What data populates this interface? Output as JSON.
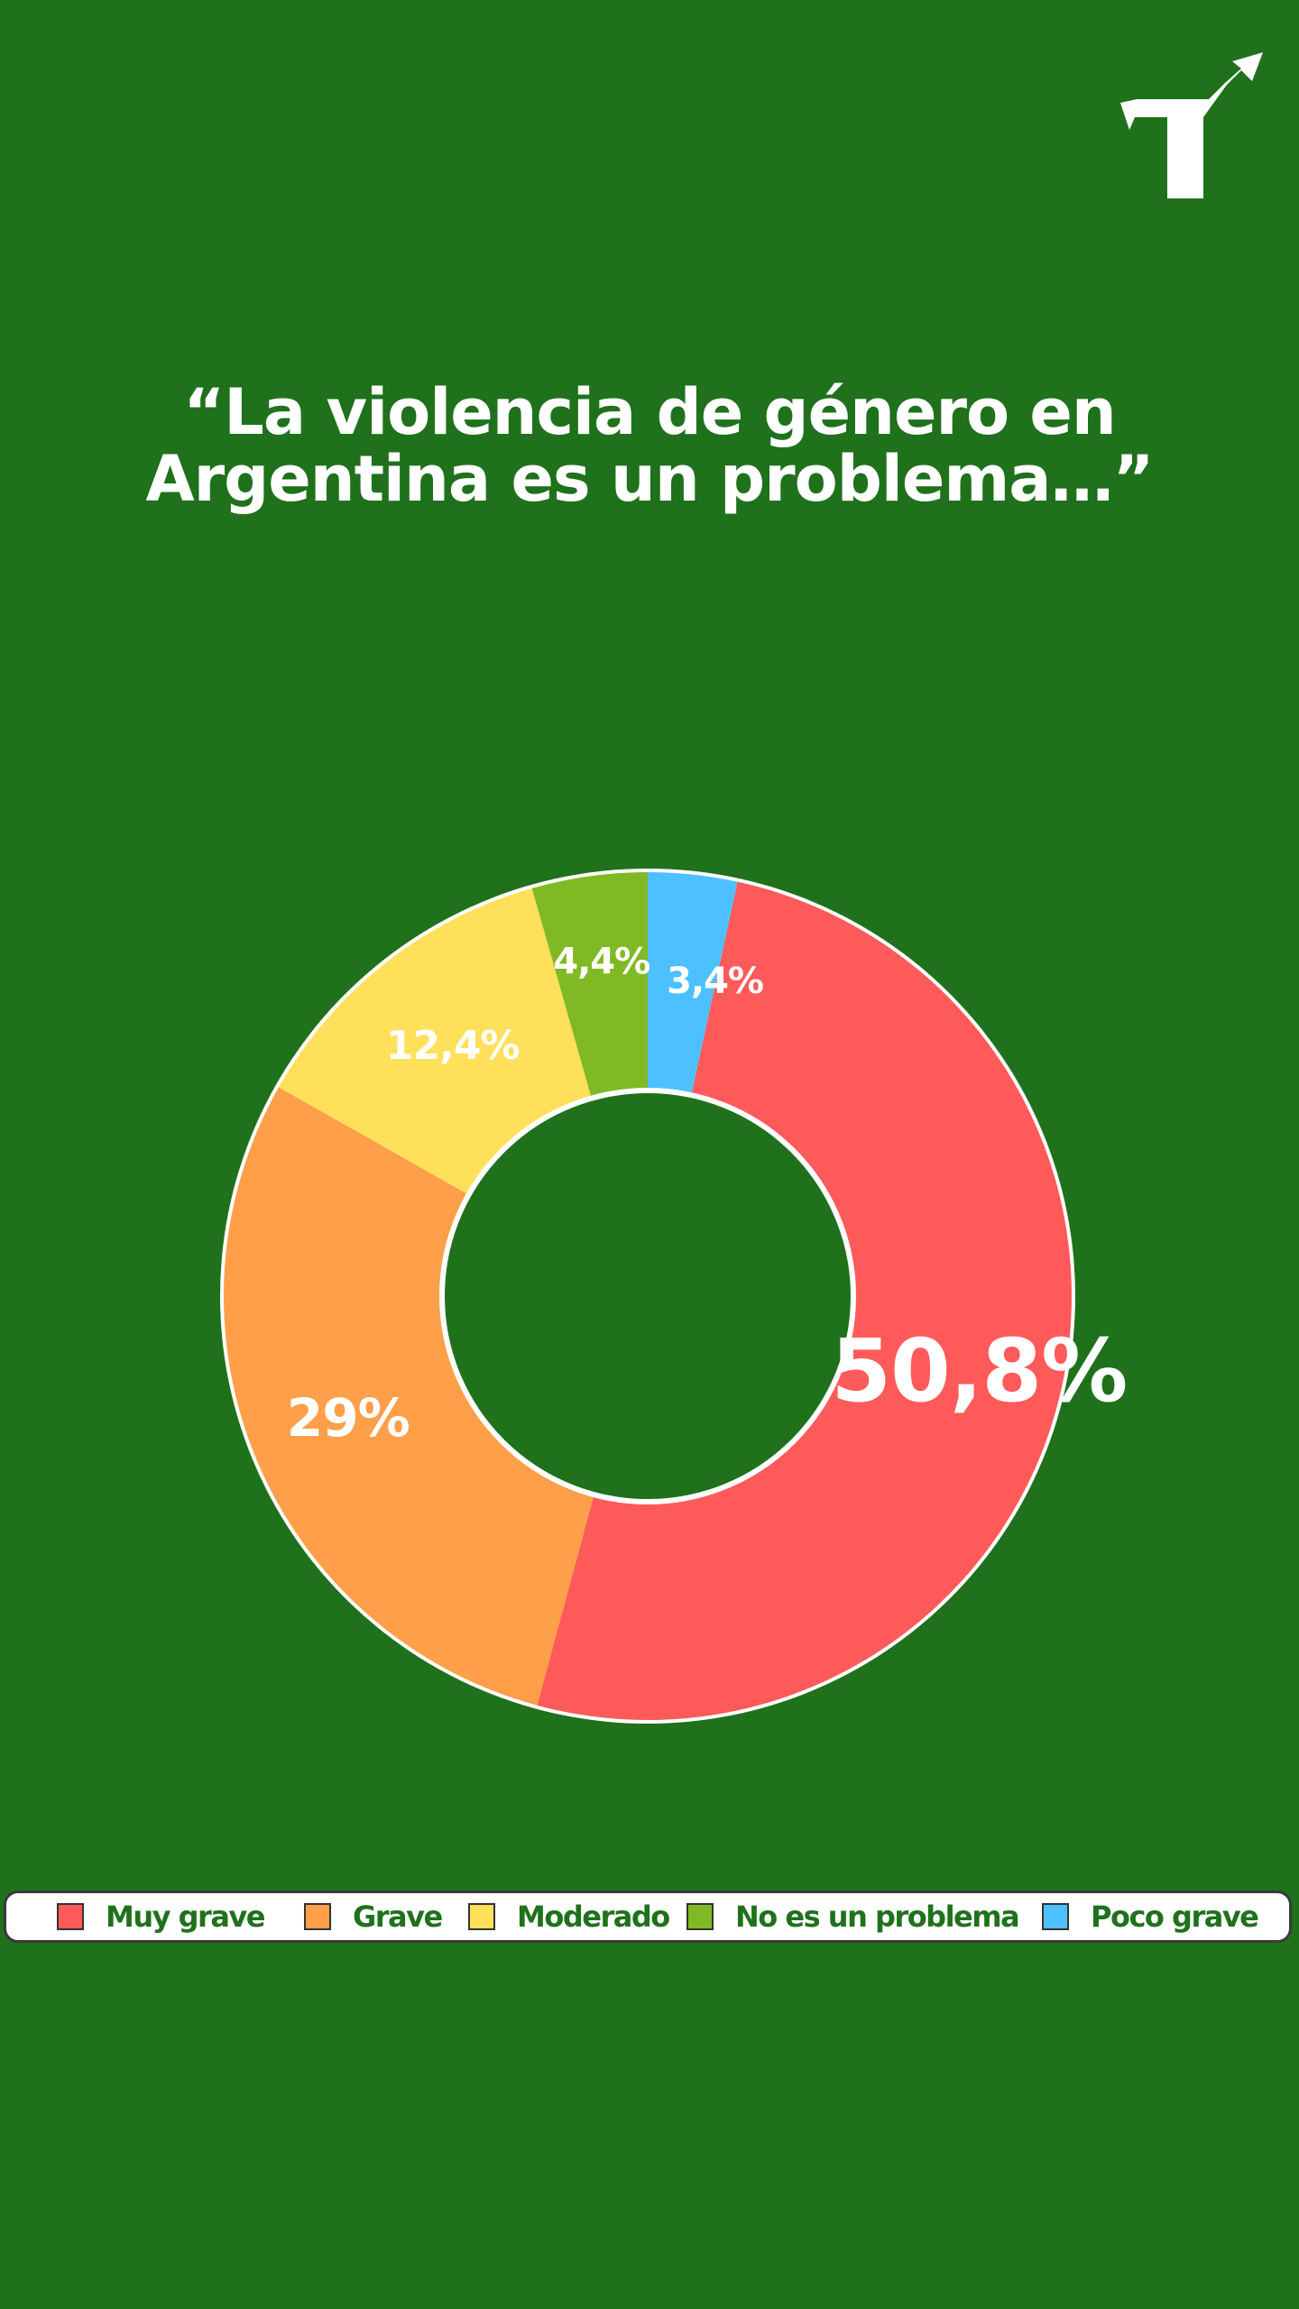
{
  "title": {
    "line1": "“La violencia de género en",
    "line2": "Argentina es un problema…”"
  },
  "logo": {
    "icon": "turn-arrow-logo-icon",
    "color": "#ffffff"
  },
  "colors": {
    "background": "#1f711c",
    "text": "#ffffff",
    "legend_text": "#1f711c"
  },
  "chart_data": {
    "type": "pie",
    "donut": true,
    "title": "“La violencia de género en Argentina es un problema…”",
    "slices": [
      {
        "label": "Muy grave",
        "value": 50.8,
        "display": "50,8%",
        "color": "#ff5a5a"
      },
      {
        "label": "Grave",
        "value": 29,
        "display": "29%",
        "color": "#ff9f4a"
      },
      {
        "label": "Moderado",
        "value": 12.4,
        "display": "12,4%",
        "color": "#ffe05a"
      },
      {
        "label": "No es un problema",
        "value": 4.4,
        "display": "4,4%",
        "color": "#7fba24"
      },
      {
        "label": "Poco grave",
        "value": 3.4,
        "display": "3,4%",
        "color": "#4dc1ff"
      }
    ],
    "slice_order_clockwise_from_top": [
      "Poco grave",
      "Muy grave",
      "Grave",
      "Moderado",
      "No es un problema"
    ],
    "legend": {
      "position": "bottom",
      "items": [
        "Muy grave",
        "Grave",
        "Moderado",
        "No es un problema",
        "Poco grave"
      ]
    }
  }
}
